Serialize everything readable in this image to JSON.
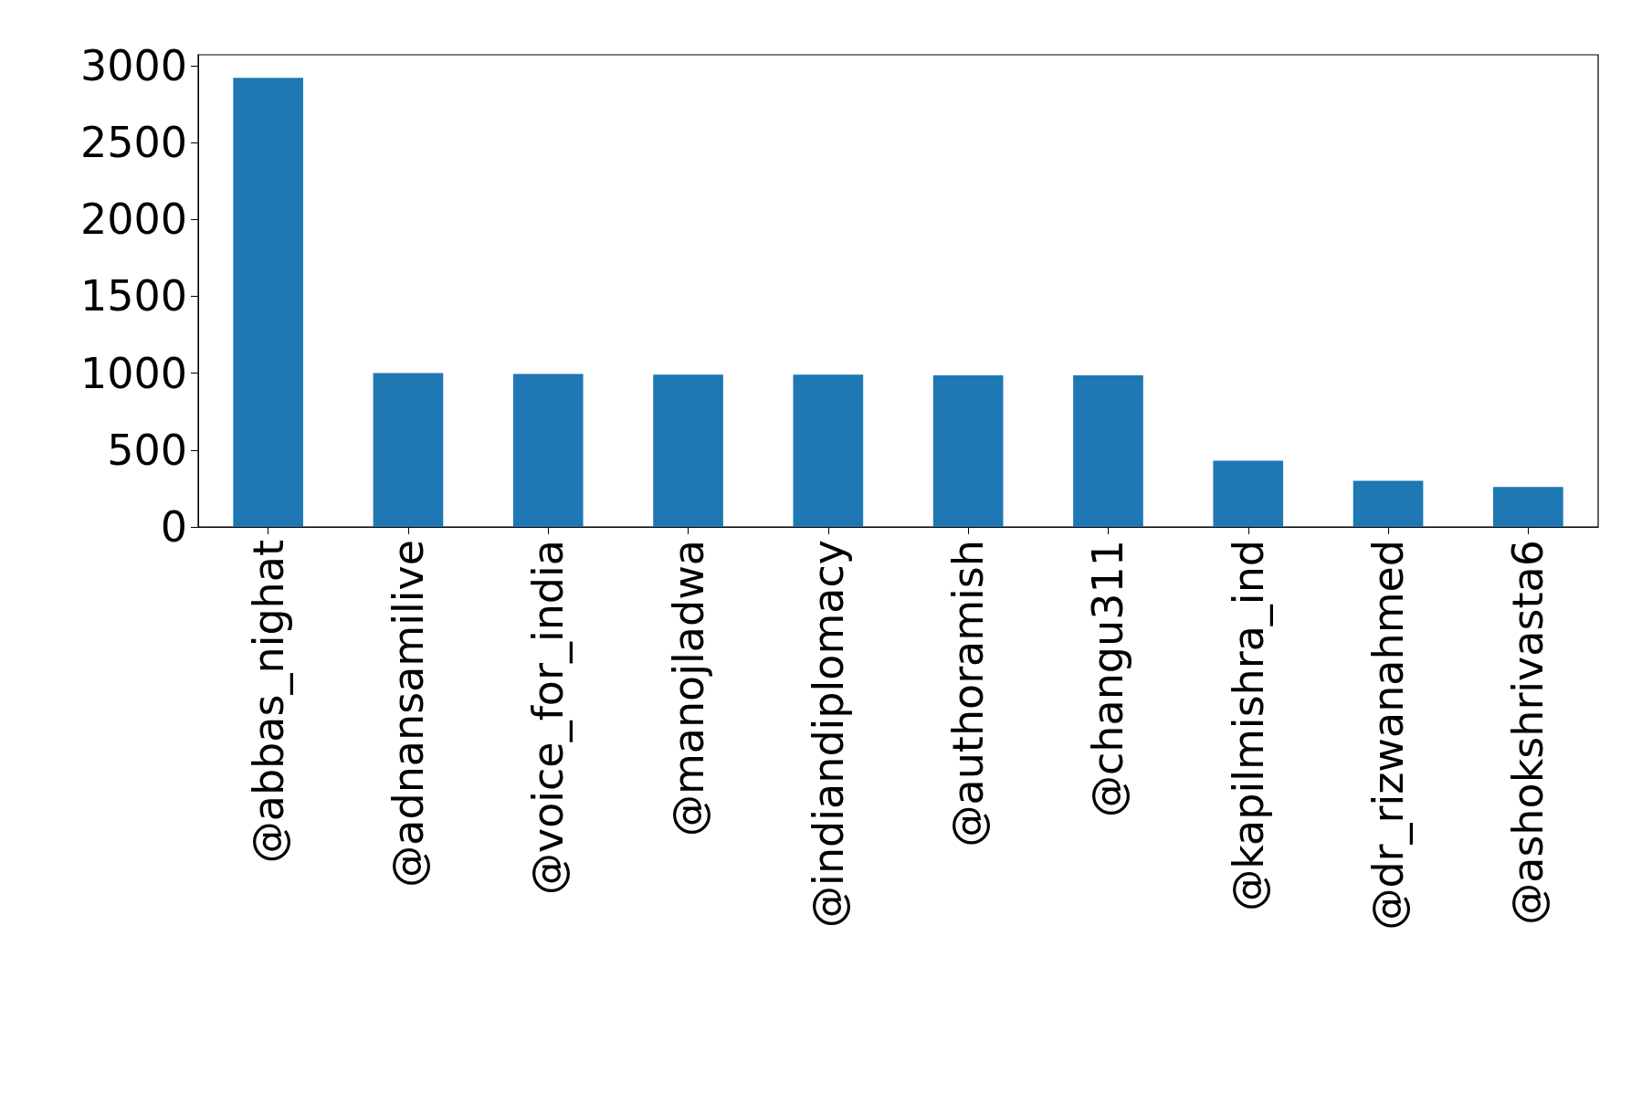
{
  "chart_data": {
    "type": "bar",
    "categories": [
      "@abbas_nighat",
      "@adnansamilive",
      "@voice_for_india",
      "@manojladwa",
      "@indiandiplomacy",
      "@authoramish",
      "@changu311",
      "@kapilmishra_ind",
      "@dr_rizwanahmed",
      "@ashokshrivasta6"
    ],
    "values": [
      2920,
      1000,
      995,
      990,
      990,
      985,
      985,
      430,
      300,
      260
    ],
    "color": "#1f77b4",
    "ylim": [
      0,
      3070
    ],
    "yticks": [
      0,
      500,
      1000,
      1500,
      2000,
      2500,
      3000
    ],
    "grid": false
  }
}
